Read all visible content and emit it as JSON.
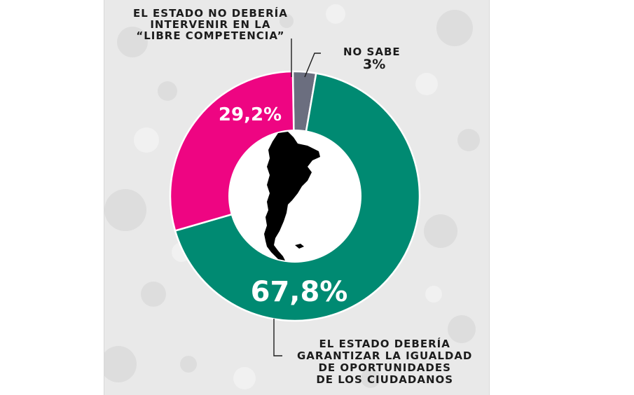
{
  "chart_data": {
    "type": "pie",
    "style": "donut",
    "slices": [
      {
        "label_lines": [
          "NO SABE"
        ],
        "value": 3,
        "value_text": "3%",
        "color": "#6b6e7f"
      },
      {
        "label_lines": [
          "EL ESTADO DEBERÍA",
          "GARANTIZAR LA IGUALDAD",
          "DE OPORTUNIDADES",
          "DE LOS CIUDADANOS"
        ],
        "value": 67.8,
        "value_text": "67,8%",
        "color": "#008a72"
      },
      {
        "label_lines": [
          "EL ESTADO NO DEBERÍA",
          "INTERVENIR EN LA",
          "“LIBRE COMPETENCIA”"
        ],
        "value": 29.2,
        "value_text": "29,2%",
        "color": "#ee0582"
      }
    ],
    "center_icon": "argentina-map-silhouette"
  },
  "colors": {
    "panel_background": "#e9e9e9",
    "center": "#ffffff",
    "label_text": "#1c1c1c",
    "value_text_on_slice": "#ffffff"
  }
}
